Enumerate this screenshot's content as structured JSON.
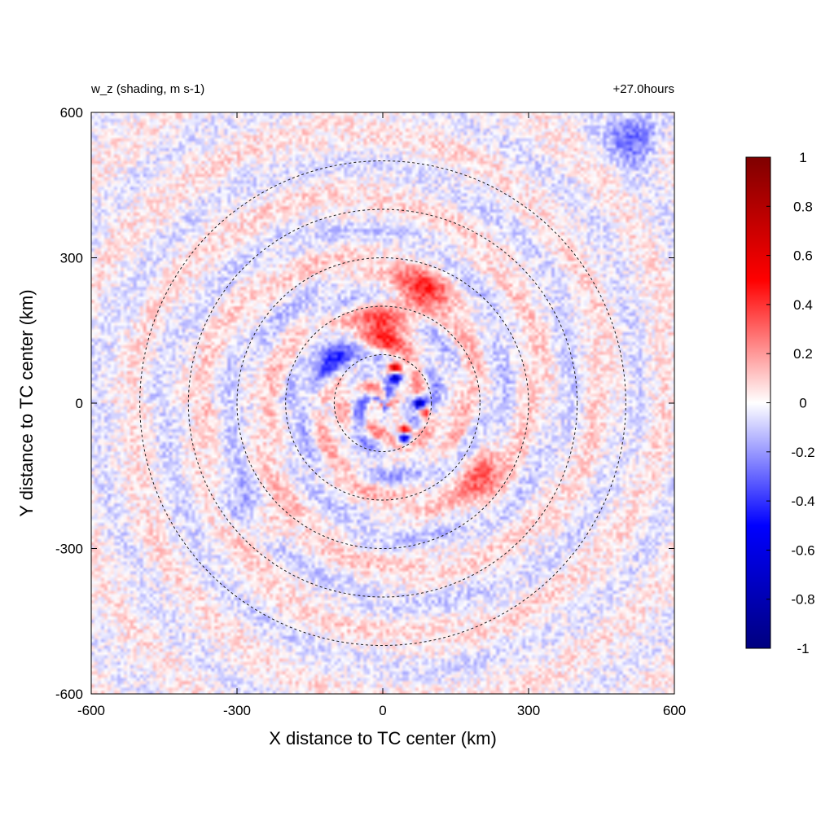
{
  "chart_data": {
    "type": "heatmap",
    "title_left": "w_z (shading, m s-1)",
    "title_right": "+27.0hours",
    "xlabel": "X distance to TC center (km)",
    "ylabel": "Y distance to TC center (km)",
    "xlim": [
      -600,
      600
    ],
    "ylim": [
      -600,
      600
    ],
    "x_ticks": [
      "-600",
      "-300",
      "0",
      "300",
      "600"
    ],
    "y_ticks": [
      "-600",
      "-300",
      "0",
      "300",
      "600"
    ],
    "x_tick_values": [
      -600,
      -300,
      0,
      300,
      600
    ],
    "y_tick_values": [
      -600,
      -300,
      0,
      300,
      600
    ],
    "colorbar": {
      "min": -1,
      "max": 1,
      "ticks": [
        "1",
        "0.8",
        "0.6",
        "0.4",
        "0.2",
        "0",
        "-0.2",
        "-0.4",
        "-0.6",
        "-0.8",
        "-1"
      ],
      "tick_values": [
        1,
        0.8,
        0.6,
        0.4,
        0.2,
        0,
        -0.2,
        -0.4,
        -0.6,
        -0.8,
        -1
      ],
      "colors": [
        "#00007f",
        "#0000ff",
        "#ffffff",
        "#ff0000",
        "#7f0000"
      ]
    },
    "range_rings_km": [
      100,
      200,
      300,
      400,
      500
    ],
    "ring_style": "dashed black",
    "field_features": [
      {
        "x": 25,
        "y": 70,
        "w": 1.0
      },
      {
        "x": 25,
        "y": 55,
        "w": -1.0
      },
      {
        "x": 75,
        "y": 0,
        "w": -0.9
      },
      {
        "x": 85,
        "y": -20,
        "w": 0.6
      },
      {
        "x": 45,
        "y": -55,
        "w": 0.9
      },
      {
        "x": 45,
        "y": -70,
        "w": -0.9
      },
      {
        "x": 0,
        "y": 160,
        "w": 0.35
      },
      {
        "x": 80,
        "y": 230,
        "w": 0.35
      },
      {
        "x": -100,
        "y": 100,
        "w": -0.25
      },
      {
        "x": -280,
        "y": -220,
        "w": -0.3
      },
      {
        "x": -260,
        "y": -230,
        "w": 0.3
      },
      {
        "x": 520,
        "y": 550,
        "w": -0.3
      },
      {
        "x": 200,
        "y": -150,
        "w": 0.25
      }
    ]
  }
}
